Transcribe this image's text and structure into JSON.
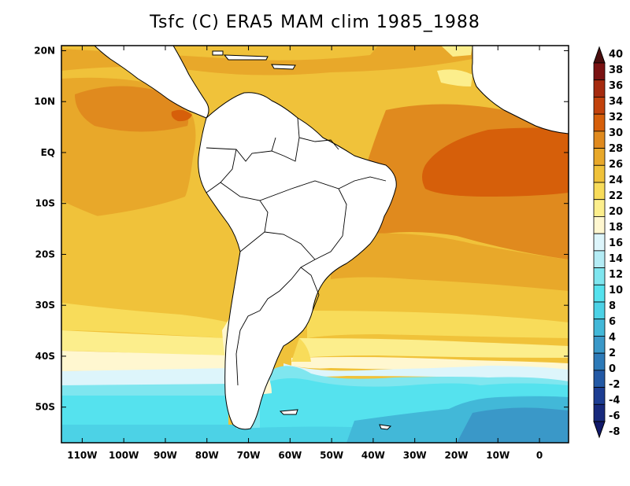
{
  "title": "Tsfc (C) ERA5 MAM clim 1985_1988",
  "map": {
    "lat_labels": [
      "20N",
      "10N",
      "EQ",
      "10S",
      "20S",
      "30S",
      "40S",
      "50S"
    ],
    "lon_labels": [
      "110W",
      "100W",
      "90W",
      "80W",
      "70W",
      "60W",
      "50W",
      "40W",
      "30W",
      "20W",
      "10W",
      "0"
    ],
    "lon_range": [
      -115,
      7
    ],
    "lat_range": [
      -57,
      21
    ]
  },
  "colorbar": {
    "labels": [
      "40",
      "38",
      "36",
      "34",
      "32",
      "30",
      "28",
      "26",
      "24",
      "22",
      "20",
      "18",
      "16",
      "14",
      "12",
      "10",
      "8",
      "6",
      "4",
      "2",
      "0",
      "-2",
      "-4",
      "-6",
      "-8"
    ],
    "colors": [
      "#4a0e0e",
      "#7a1212",
      "#a52a0e",
      "#c2420c",
      "#d65f0a",
      "#e08a1e",
      "#e8a82a",
      "#f0c23a",
      "#f8dc5a",
      "#fcee8c",
      "#fff7d0",
      "#ddf5fb",
      "#b4ecf5",
      "#7fe6ef",
      "#55e2ee",
      "#4cd2e6",
      "#42b8d8",
      "#3a98c8",
      "#2d7ab8",
      "#2359a5",
      "#1d3d92",
      "#17297c",
      "#11196a"
    ]
  },
  "colors": {
    "land": "#ffffff",
    "coast": "#000000"
  }
}
